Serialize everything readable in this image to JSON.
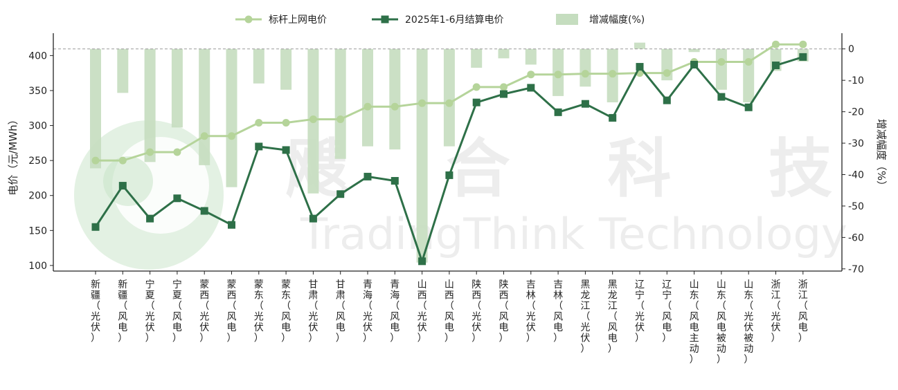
{
  "chart_data": {
    "type": "bar+line",
    "legend": {
      "placement": "top-center",
      "items": [
        {
          "label": "标杆上网电价",
          "color": "#b5d49a",
          "marker": "circle-line"
        },
        {
          "label": "2025年1-6月结算电价",
          "color": "#2e7048",
          "marker": "square-line"
        },
        {
          "label": "增减幅度(%)",
          "color": "#c5ddbf",
          "marker": "bar"
        }
      ]
    },
    "categories": [
      "新疆（光伏）",
      "新疆（风电）",
      "宁夏（光伏）",
      "宁夏（风电）",
      "蒙西（光伏）",
      "蒙西（风电）",
      "蒙东（光伏）",
      "蒙东（风电）",
      "甘肃（光伏）",
      "甘肃（风电）",
      "青海（光伏）",
      "青海（风电）",
      "山西（光伏）",
      "山西（风电）",
      "陕西（光伏）",
      "陕西（风电）",
      "吉林（光伏）",
      "吉林（风电）",
      "黑龙江（光伏）",
      "黑龙江（风电）",
      "辽宁（光伏）",
      "辽宁（风电）",
      "山东（风电主动）",
      "山东（风电被动）",
      "山东（光伏被动）",
      "浙江（光伏）",
      "浙江（风电）"
    ],
    "series": [
      {
        "name": "标杆上网电价",
        "axis": "left",
        "type": "line",
        "values": [
          250,
          250,
          262,
          262,
          285,
          285,
          304,
          304,
          309,
          309,
          327,
          327,
          332,
          332,
          355,
          355,
          373,
          373,
          374,
          374,
          375,
          375,
          391,
          391,
          391,
          416,
          416
        ]
      },
      {
        "name": "2025年1-6月结算电价",
        "axis": "left",
        "type": "line",
        "values": [
          155,
          214,
          167,
          196,
          178,
          158,
          270,
          265,
          167,
          202,
          227,
          221,
          106,
          229,
          333,
          345,
          354,
          319,
          331,
          311,
          384,
          336,
          387,
          341,
          326,
          386,
          398
        ]
      },
      {
        "name": "增减幅度(%)",
        "axis": "right",
        "type": "bar",
        "values": [
          -38,
          -14,
          -36,
          -25,
          -37,
          -44,
          -11,
          -13,
          -46,
          -35,
          -31,
          -32,
          -68,
          -31,
          -6,
          -3,
          -5,
          -15,
          -12,
          -17,
          2,
          -10,
          -1,
          -13,
          -17,
          -7,
          -4
        ]
      }
    ],
    "ylabel": "电价（元/MWh）",
    "y2label": "增减幅度（%）",
    "ylim": [
      92,
      432
    ],
    "y2lim": [
      -70.7,
      5
    ],
    "yticks": [
      100,
      150,
      200,
      250,
      300,
      350,
      400
    ],
    "y2ticks": [
      0,
      -10,
      -20,
      -30,
      -40,
      -50,
      -60,
      -70
    ],
    "zero_reference_line": true,
    "grid": false
  },
  "watermark": {
    "cn": "飕 合 科 技",
    "en": "TradingThink Technology"
  }
}
